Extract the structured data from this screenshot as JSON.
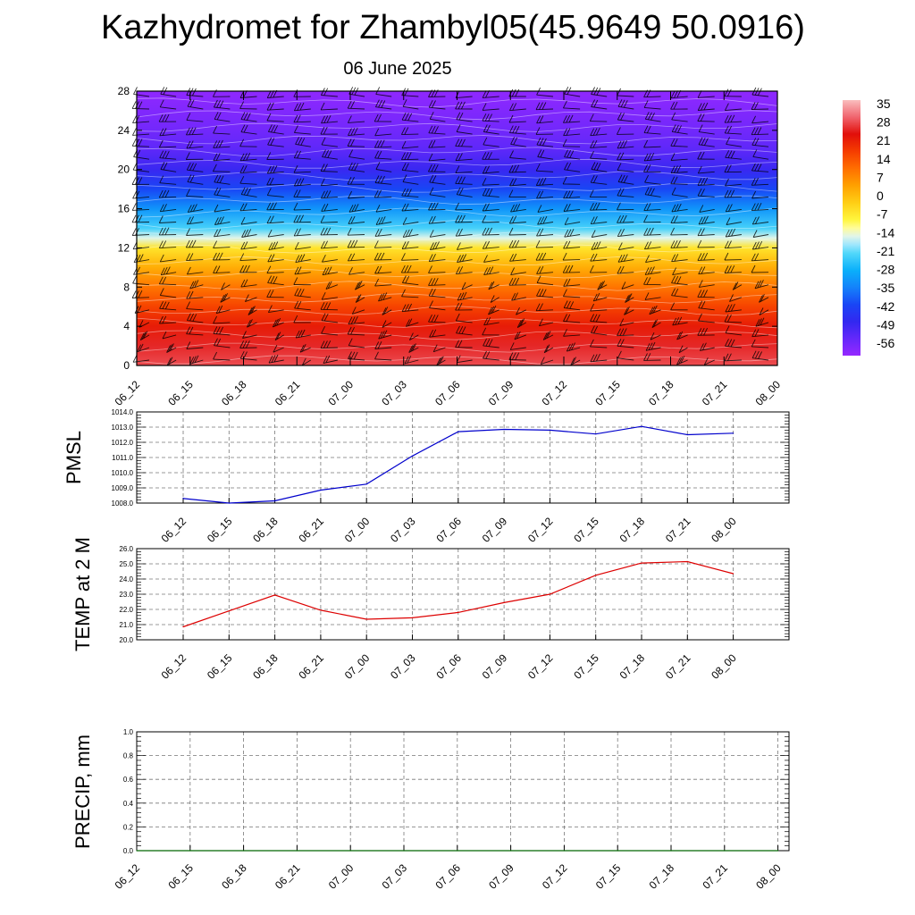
{
  "header": {
    "title": "Kazhydromet for Zhambyl05(45.9649 50.0916)",
    "subtitle": "06 June 2025"
  },
  "chart_data": [
    {
      "type": "heatmap",
      "title": "",
      "xlabel": "",
      "ylabel": "",
      "x_tick_labels": [
        "06_12",
        "06_15",
        "06_18",
        "06_21",
        "07_00",
        "07_03",
        "07_06",
        "07_09",
        "07_12",
        "07_15",
        "07_18",
        "07_21",
        "08_00"
      ],
      "y_ticks": [
        0,
        4,
        8,
        12,
        16,
        20,
        24,
        28
      ],
      "ylim": [
        0,
        28
      ],
      "colorbar_labels": [
        "35",
        "28",
        "21",
        "14",
        "7",
        "0",
        "-7",
        "-14",
        "-21",
        "-28",
        "-35",
        "-42",
        "-49",
        "-56"
      ],
      "colorbar_range": [
        -63,
        42
      ],
      "overlay": "wind barbs",
      "grid": false,
      "temperature_profile": {
        "levels": [
          0,
          2,
          4,
          6,
          8,
          10,
          12,
          13,
          14,
          16,
          18,
          20,
          22,
          24,
          26,
          28
        ],
        "values": [
          33,
          30,
          26,
          20,
          13,
          5,
          -4,
          -14,
          -22,
          -32,
          -42,
          -50,
          -55,
          -58,
          -60,
          -62
        ]
      }
    },
    {
      "type": "line",
      "ylabel": "PMSL",
      "xlabel": "",
      "x_tick_labels": [
        "06_12",
        "06_15",
        "06_18",
        "06_21",
        "07_00",
        "07_03",
        "07_06",
        "07_09",
        "07_12",
        "07_15",
        "07_18",
        "07_21",
        "08_00"
      ],
      "y_tick_labels": [
        "1008.0",
        "1009.0",
        "1010.0",
        "1011.0",
        "1012.0",
        "1013.0",
        "1014.0"
      ],
      "ylim": [
        1008.0,
        1014.0
      ],
      "grid": true,
      "series": [
        {
          "color": "#0000cc",
          "values": [
            1008.3,
            1008.0,
            1008.15,
            1008.85,
            1009.25,
            1011.1,
            1012.7,
            1012.85,
            1012.8,
            1012.55,
            1013.05,
            1012.5,
            1012.6
          ]
        }
      ]
    },
    {
      "type": "line",
      "ylabel": "TEMP at 2 M",
      "xlabel": "",
      "x_tick_labels": [
        "06_12",
        "06_15",
        "06_18",
        "06_21",
        "07_00",
        "07_03",
        "07_06",
        "07_09",
        "07_12",
        "07_15",
        "07_18",
        "07_21",
        "08_00"
      ],
      "y_tick_labels": [
        "20.0",
        "21.0",
        "22.0",
        "23.0",
        "24.0",
        "25.0",
        "26.0"
      ],
      "ylim": [
        20.0,
        26.0
      ],
      "grid": true,
      "series": [
        {
          "color": "#dd0000",
          "values": [
            20.85,
            21.9,
            22.95,
            21.95,
            21.35,
            21.45,
            21.8,
            22.45,
            23.0,
            24.25,
            25.05,
            25.15,
            24.35
          ]
        }
      ]
    },
    {
      "type": "line",
      "ylabel": "PRECIP, mm",
      "xlabel": "",
      "x_tick_labels": [
        "06_12",
        "06_15",
        "06_18",
        "06_21",
        "07_00",
        "07_03",
        "07_06",
        "07_09",
        "07_12",
        "07_15",
        "07_18",
        "07_21",
        "08_00"
      ],
      "y_tick_labels": [
        "0.0",
        "0.2",
        "0.4",
        "0.6",
        "0.8",
        "1.0"
      ],
      "ylim": [
        0.0,
        1.0
      ],
      "grid": true,
      "series": [
        {
          "color": "#006600",
          "values": [
            0,
            0,
            0,
            0,
            0,
            0,
            0,
            0,
            0,
            0,
            0,
            0,
            0
          ]
        }
      ]
    }
  ]
}
